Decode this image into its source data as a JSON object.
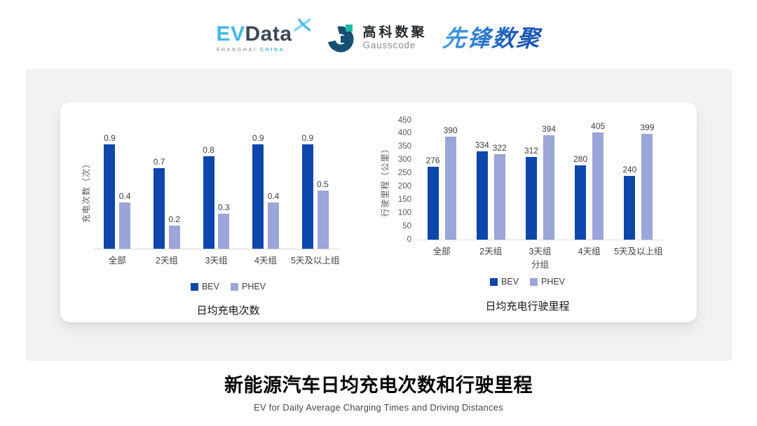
{
  "header": {
    "evdata": {
      "ev": "EV",
      "data": "Data",
      "sub_left": "SHANGHAI",
      "sub_right": "CHINA"
    },
    "gausscode": {
      "cn": "高科数聚",
      "en": "Gausscode"
    },
    "xianfeng": "先锋数聚"
  },
  "colors": {
    "bev": "#0E47AB",
    "phev": "#9BA5D8",
    "evdata_blue": "#41B7E9",
    "evdata_dark": "#3D4856",
    "gausscode_navy": "#174E74",
    "gausscode_teal": "#1FB9A9",
    "xianfeng_blue_start": "#44A0E8",
    "xianfeng_blue_end": "#1A57B8",
    "axis_line": "#D9D9D9",
    "tick_text": "#595959"
  },
  "chart_data": [
    {
      "type": "bar",
      "title": "日均充电次数",
      "ylabel": "充电次数（次）",
      "xlabel": "",
      "categories": [
        "全部",
        "2天组",
        "3天组",
        "4天组",
        "5天及以上组"
      ],
      "series": [
        {
          "name": "BEV",
          "color": "#0E47AB",
          "values": [
            0.9,
            0.7,
            0.8,
            0.9,
            0.9
          ]
        },
        {
          "name": "PHEV",
          "color": "#9BA5D8",
          "values": [
            0.4,
            0.2,
            0.3,
            0.4,
            0.5
          ]
        }
      ],
      "ylim": [
        0,
        1.0
      ],
      "yticks": [],
      "value_decimals": 1,
      "data_labels": true,
      "grid": false,
      "legend_position": "bottom"
    },
    {
      "type": "bar",
      "title": "日均充电行驶里程",
      "ylabel": "行驶里程（公里）",
      "xlabel": "分组",
      "categories": [
        "全部",
        "2天组",
        "3天组",
        "4天组",
        "5天及以上组"
      ],
      "series": [
        {
          "name": "BEV",
          "color": "#0E47AB",
          "values": [
            276,
            334,
            312,
            280,
            240
          ]
        },
        {
          "name": "PHEV",
          "color": "#9BA5D8",
          "values": [
            390,
            322,
            394,
            405,
            399
          ]
        }
      ],
      "ylim": [
        0,
        450
      ],
      "yticks": [
        0,
        50,
        100,
        150,
        200,
        250,
        300,
        350,
        400,
        450
      ],
      "value_decimals": 0,
      "data_labels": true,
      "grid": false,
      "legend_position": "bottom"
    }
  ],
  "footer": {
    "title": "新能源汽车日均充电次数和行驶里程",
    "subtitle": "EV for Daily Average Charging Times and Driving Distances"
  }
}
